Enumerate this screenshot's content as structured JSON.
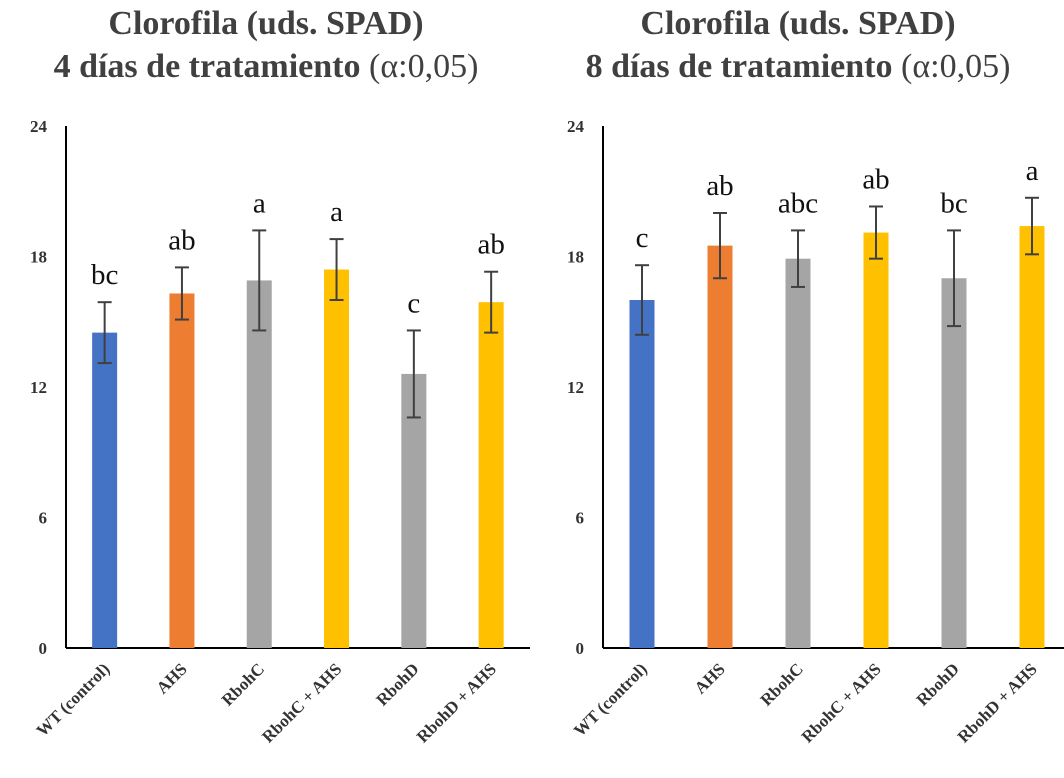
{
  "colors": {
    "wt": "#4472C4",
    "ahs": "#ED7D31",
    "rboh": "#A5A5A5",
    "rboh_ahs": "#FFC000",
    "errorbar": "#404040",
    "axis": "#000000"
  },
  "chart_data": [
    {
      "type": "bar",
      "title_line1": "Clorofila (uds. SPAD)",
      "title_line2_bold": "4 días de tratamiento",
      "title_line2_alpha": "(α:0,05)",
      "categories": [
        "WT (control)",
        "AHS",
        "RbohC",
        "RbohC + AHS",
        "RbohD",
        "RbohD + AHS"
      ],
      "values": [
        14.5,
        16.3,
        16.9,
        17.4,
        12.6,
        15.9
      ],
      "errors": [
        1.4,
        1.2,
        2.3,
        1.4,
        2.0,
        1.4
      ],
      "letters": [
        "bc",
        "ab",
        "a",
        "a",
        "c",
        "ab"
      ],
      "bar_color_keys": [
        "wt",
        "ahs",
        "rboh",
        "rboh_ahs",
        "rboh",
        "rboh_ahs"
      ],
      "yticks": [
        "0",
        "6",
        "12",
        "18",
        "24"
      ],
      "ylim": [
        0,
        24
      ],
      "grid": false,
      "legend": "none"
    },
    {
      "type": "bar",
      "title_line1": "Clorofila (uds. SPAD)",
      "title_line2_bold": "8 días de tratamiento",
      "title_line2_alpha": "(α:0,05)",
      "categories": [
        "WT (control)",
        "AHS",
        "RbohC",
        "RbohC + AHS",
        "RbohD",
        "RbohD + AHS"
      ],
      "values": [
        16.0,
        18.5,
        17.9,
        19.1,
        17.0,
        19.4
      ],
      "errors": [
        1.6,
        1.5,
        1.3,
        1.2,
        2.2,
        1.3
      ],
      "letters": [
        "c",
        "ab",
        "abc",
        "ab",
        "bc",
        "a"
      ],
      "bar_color_keys": [
        "wt",
        "ahs",
        "rboh",
        "rboh_ahs",
        "rboh",
        "rboh_ahs"
      ],
      "yticks": [
        "0",
        "6",
        "12",
        "18",
        "24"
      ],
      "ylim": [
        0,
        24
      ],
      "grid": false,
      "legend": "none"
    }
  ]
}
